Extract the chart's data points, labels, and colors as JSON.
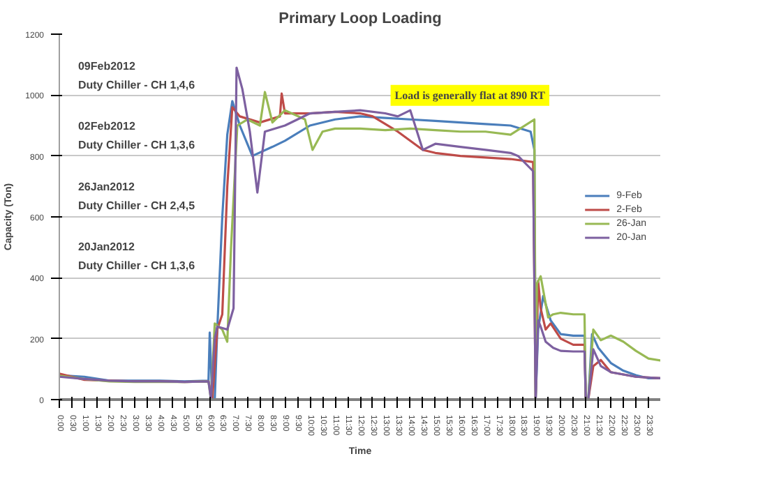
{
  "chart_data": {
    "type": "line",
    "title": "Primary Loop Loading",
    "xlabel": "Time",
    "ylabel": "Capacity (Ton)",
    "xlim": [
      0,
      24
    ],
    "ylim": [
      0,
      1200
    ],
    "yticks": [
      0,
      200,
      400,
      600,
      800,
      1000,
      1200
    ],
    "xticks": [
      {
        "value": 0,
        "label": "0:00"
      },
      {
        "value": 0.5,
        "label": "0:30"
      },
      {
        "value": 1,
        "label": "1:00"
      },
      {
        "value": 1.5,
        "label": "1:30"
      },
      {
        "value": 2,
        "label": "2:00"
      },
      {
        "value": 2.5,
        "label": "2:30"
      },
      {
        "value": 3,
        "label": "3:00"
      },
      {
        "value": 3.5,
        "label": "3:30"
      },
      {
        "value": 4,
        "label": "4:00"
      },
      {
        "value": 4.5,
        "label": "4:30"
      },
      {
        "value": 5,
        "label": "5:00"
      },
      {
        "value": 5.5,
        "label": "5:30"
      },
      {
        "value": 6,
        "label": "6:00"
      },
      {
        "value": 6.5,
        "label": "6:30"
      },
      {
        "value": 7,
        "label": "7:00"
      },
      {
        "value": 7.5,
        "label": "7:30"
      },
      {
        "value": 8,
        "label": "8:00"
      },
      {
        "value": 8.5,
        "label": "8:30"
      },
      {
        "value": 9,
        "label": "9:00"
      },
      {
        "value": 9.5,
        "label": "9:30"
      },
      {
        "value": 10,
        "label": "10:00"
      },
      {
        "value": 10.5,
        "label": "10:30"
      },
      {
        "value": 11,
        "label": "11:00"
      },
      {
        "value": 11.5,
        "label": "11:30"
      },
      {
        "value": 12,
        "label": "12:00"
      },
      {
        "value": 12.5,
        "label": "12:30"
      },
      {
        "value": 13,
        "label": "13:00"
      },
      {
        "value": 13.5,
        "label": "13:30"
      },
      {
        "value": 14,
        "label": "14:00"
      },
      {
        "value": 14.5,
        "label": "14:30"
      },
      {
        "value": 15,
        "label": "15:00"
      },
      {
        "value": 15.5,
        "label": "15:30"
      },
      {
        "value": 16,
        "label": "16:00"
      },
      {
        "value": 16.5,
        "label": "16:30"
      },
      {
        "value": 17,
        "label": "17:00"
      },
      {
        "value": 17.5,
        "label": "17:30"
      },
      {
        "value": 18,
        "label": "18:00"
      },
      {
        "value": 18.5,
        "label": "18:30"
      },
      {
        "value": 19,
        "label": "19:00"
      },
      {
        "value": 19.5,
        "label": "19:30"
      },
      {
        "value": 20,
        "label": "20:00"
      },
      {
        "value": 20.5,
        "label": "20:30"
      },
      {
        "value": 21,
        "label": "21:00"
      },
      {
        "value": 21.5,
        "label": "21:30"
      },
      {
        "value": 22,
        "label": "22:00"
      },
      {
        "value": 22.5,
        "label": "22:30"
      },
      {
        "value": 23,
        "label": "23:00"
      },
      {
        "value": 23.5,
        "label": "23:30"
      }
    ],
    "grid": "y",
    "legend": "right",
    "annotations": [
      "09Feb2012\nDuty Chiller - CH 1,4,6",
      "02Feb2012\nDuty Chiller - CH 1,3,6",
      "26Jan2012\nDuty Chiller - CH 2,4,5",
      "20Jan2012\nDuty Chiller - CH 1,3,6",
      "Load is generally flat at 890 RT"
    ],
    "series": [
      {
        "name": "9-Feb",
        "color": "#4a7ebb",
        "x": [
          0,
          1,
          2,
          3,
          4,
          5,
          5.95,
          6.0,
          6.1,
          6.2,
          6.3,
          6.5,
          6.7,
          6.9,
          7.2,
          7.7,
          8.5,
          9,
          10,
          11,
          12,
          13,
          14,
          15,
          16,
          17,
          18,
          18.8,
          18.95,
          19.0,
          19.1,
          19.3,
          19.6,
          20,
          20.5,
          20.95,
          21.0,
          21.1,
          21.25,
          21.5,
          22,
          22.5,
          23,
          23.5,
          24
        ],
        "values": [
          80,
          75,
          62,
          62,
          62,
          60,
          62,
          220,
          0,
          0,
          230,
          600,
          870,
          980,
          900,
          800,
          830,
          850,
          900,
          920,
          930,
          925,
          920,
          915,
          910,
          905,
          900,
          880,
          820,
          0,
          230,
          340,
          260,
          215,
          210,
          210,
          0,
          0,
          215,
          170,
          120,
          95,
          80,
          70,
          70
        ]
      },
      {
        "name": "2-Feb",
        "color": "#be4b48",
        "x": [
          0,
          1,
          2,
          3,
          4,
          5,
          5.95,
          6.1,
          6.3,
          6.5,
          6.7,
          6.9,
          7.2,
          8,
          8.8,
          8.87,
          9,
          10,
          11,
          12,
          12.5,
          13.5,
          14.5,
          15,
          16,
          17,
          18,
          18.9,
          19.0,
          19.1,
          19.2,
          19.4,
          19.6,
          20,
          20.5,
          20.95,
          21.0,
          21.1,
          21.3,
          21.6,
          22,
          23,
          24
        ],
        "values": [
          85,
          65,
          62,
          60,
          60,
          58,
          60,
          0,
          230,
          280,
          700,
          960,
          930,
          910,
          930,
          1005,
          940,
          940,
          945,
          940,
          930,
          880,
          820,
          810,
          800,
          795,
          790,
          780,
          0,
          390,
          300,
          230,
          250,
          200,
          180,
          180,
          0,
          0,
          110,
          130,
          90,
          75,
          70
        ]
      },
      {
        "name": "26-Jan",
        "color": "#98b954",
        "x": [
          0,
          1,
          2,
          3,
          4,
          5,
          5.95,
          6.05,
          6.2,
          6.5,
          6.7,
          6.85,
          7.1,
          7.5,
          8,
          8.2,
          8.5,
          9,
          9.8,
          10.1,
          10.5,
          11,
          12,
          13,
          14,
          15,
          16,
          17,
          18,
          18.95,
          19.0,
          19.05,
          19.2,
          19.5,
          19.7,
          20,
          20.5,
          20.95,
          21.0,
          21.1,
          21.3,
          21.6,
          22,
          22.5,
          23,
          23.5,
          24
        ],
        "values": [
          78,
          68,
          60,
          58,
          58,
          58,
          60,
          0,
          250,
          230,
          190,
          500,
          900,
          920,
          900,
          1010,
          910,
          950,
          920,
          820,
          880,
          890,
          890,
          885,
          890,
          885,
          880,
          880,
          870,
          920,
          0,
          380,
          405,
          270,
          280,
          285,
          280,
          280,
          0,
          0,
          230,
          195,
          210,
          190,
          160,
          135,
          128
        ]
      },
      {
        "name": "20-Jan",
        "color": "#7d60a0",
        "x": [
          0,
          1,
          2,
          3,
          4,
          5,
          5.95,
          6.05,
          6.2,
          6.3,
          6.7,
          6.95,
          7.07,
          7.3,
          7.6,
          7.9,
          8.2,
          9,
          10,
          11,
          12,
          13,
          13.5,
          14,
          14.5,
          15,
          16,
          17,
          18,
          18.3,
          18.9,
          19.0,
          19.1,
          19.2,
          19.4,
          19.7,
          20,
          20.5,
          20.95,
          21.0,
          21.1,
          21.3,
          21.6,
          22,
          23,
          24
        ],
        "values": [
          75,
          68,
          62,
          60,
          60,
          58,
          60,
          0,
          200,
          240,
          230,
          300,
          1090,
          1020,
          880,
          680,
          880,
          900,
          940,
          945,
          950,
          940,
          930,
          950,
          820,
          840,
          830,
          820,
          810,
          800,
          750,
          0,
          260,
          240,
          190,
          170,
          160,
          158,
          158,
          0,
          0,
          165,
          110,
          90,
          75,
          70
        ]
      }
    ]
  }
}
